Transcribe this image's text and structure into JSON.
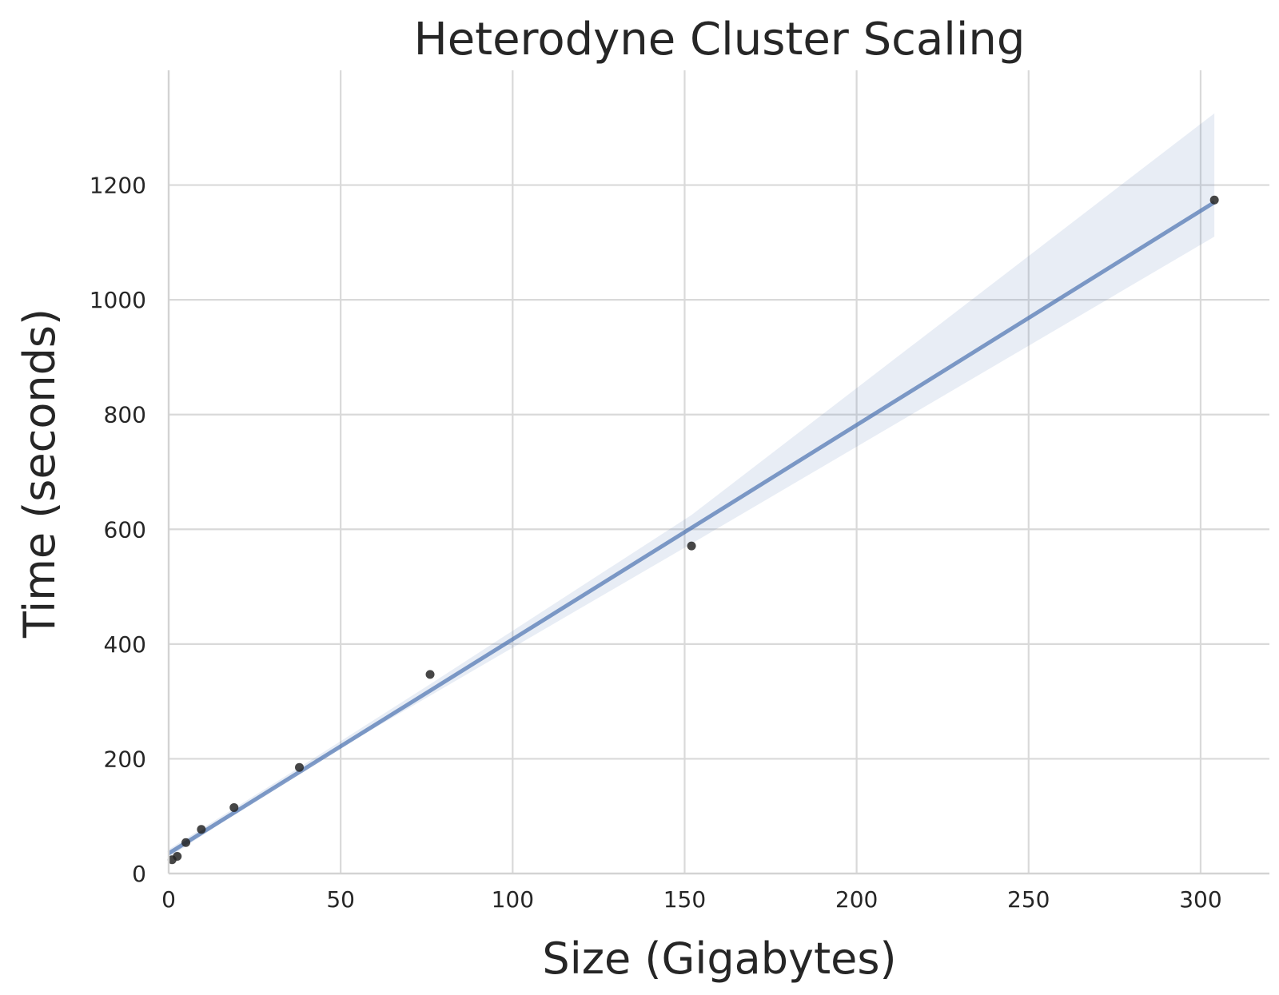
{
  "chart_data": {
    "type": "scatter",
    "title": "Heterodyne Cluster Scaling",
    "xlabel": "Size (Gigabytes)",
    "ylabel": "Time (seconds)",
    "xlim": [
      0,
      320
    ],
    "ylim": [
      0,
      1400
    ],
    "xticks": [
      0,
      50,
      100,
      150,
      200,
      250,
      300
    ],
    "yticks": [
      0,
      200,
      400,
      600,
      800,
      1000,
      1200
    ],
    "grid": true,
    "points": [
      {
        "x": 1,
        "y": 24
      },
      {
        "x": 2.5,
        "y": 30
      },
      {
        "x": 5,
        "y": 54
      },
      {
        "x": 9.5,
        "y": 77
      },
      {
        "x": 19,
        "y": 115
      },
      {
        "x": 38,
        "y": 185
      },
      {
        "x": 76,
        "y": 347
      },
      {
        "x": 152,
        "y": 571
      },
      {
        "x": 304,
        "y": 1174
      }
    ],
    "regression": {
      "x_range": [
        0,
        304
      ],
      "line": [
        [
          0,
          35
        ],
        [
          304,
          1170
        ]
      ],
      "ci_upper": [
        [
          0,
          42
        ],
        [
          38,
          185
        ],
        [
          76,
          330
        ],
        [
          152,
          625
        ],
        [
          304,
          1325
        ]
      ],
      "ci_lower": [
        [
          0,
          28
        ],
        [
          38,
          177
        ],
        [
          76,
          310
        ],
        [
          152,
          575
        ],
        [
          304,
          1110
        ]
      ]
    },
    "colors": {
      "point": "#262626",
      "line": "#4c72b0",
      "band": "#4c72b0",
      "grid": "#d9d9d9"
    }
  }
}
